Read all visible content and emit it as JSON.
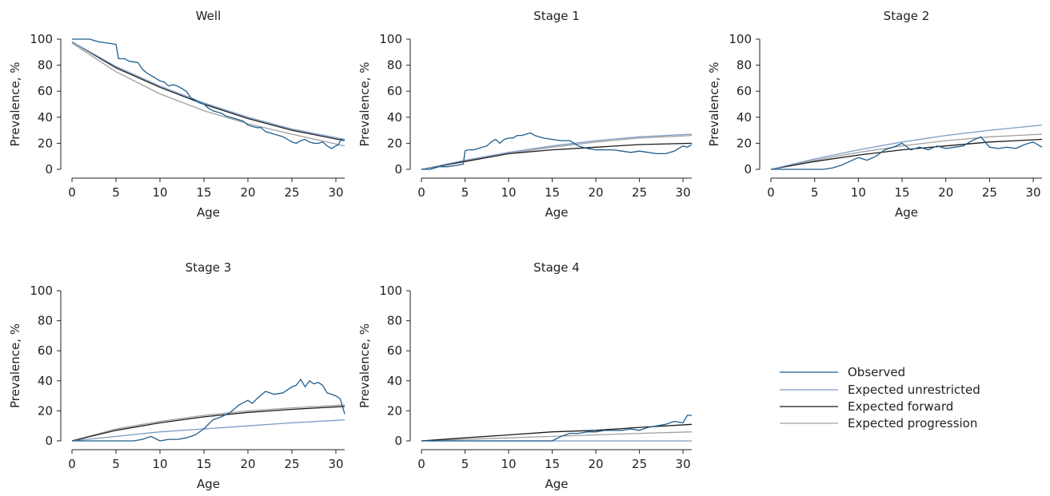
{
  "chart_data": [
    {
      "type": "line",
      "title": "Well",
      "xlabel": "Age",
      "ylabel": "Prevalence, %",
      "xlim": [
        0,
        31
      ],
      "ylim": [
        0,
        100
      ],
      "xticks": [
        0,
        5,
        10,
        15,
        20,
        25,
        30
      ],
      "yticks": [
        0,
        20,
        40,
        60,
        80,
        100
      ],
      "series": [
        {
          "name": "Observed",
          "color": "#1f5d8c",
          "x": [
            0,
            1,
            1.5,
            2,
            3,
            4,
            5,
            5.3,
            6,
            6.5,
            7.5,
            8,
            8.5,
            9,
            9.5,
            10,
            10.5,
            11,
            11.5,
            12,
            12.5,
            13,
            13.5,
            14,
            14.5,
            15,
            15.5,
            16,
            16.5,
            17,
            17.5,
            18,
            18.5,
            19,
            19.5,
            20,
            20.5,
            21,
            21.5,
            22,
            22.5,
            23,
            23.5,
            24,
            24.5,
            25,
            25.5,
            26,
            26.5,
            27,
            27.5,
            28,
            28.5,
            29,
            29.5,
            30,
            30.3,
            30.6,
            31
          ],
          "y": [
            100,
            100,
            100,
            100,
            98,
            97,
            96,
            85,
            85,
            83,
            82,
            77,
            74,
            72,
            70,
            68,
            67,
            64,
            65,
            64,
            62,
            60,
            55,
            53,
            51,
            50,
            47,
            45,
            44,
            43,
            41,
            40,
            39,
            38,
            37,
            34,
            33,
            32,
            32,
            29,
            28,
            27,
            26,
            25,
            23,
            21,
            20,
            22,
            23,
            21,
            20,
            20,
            21,
            18,
            16,
            18,
            19,
            23,
            22
          ]
        },
        {
          "name": "Expected unrestricted",
          "color": "#7a9cc4",
          "x": [
            0,
            5,
            10,
            15,
            20,
            25,
            31
          ],
          "y": [
            98,
            79,
            64,
            51,
            40,
            31,
            23
          ]
        },
        {
          "name": "Expected forward",
          "color": "#1a1a1a",
          "x": [
            0,
            5,
            10,
            15,
            20,
            25,
            31
          ],
          "y": [
            98,
            78,
            63,
            50,
            39,
            30,
            22
          ]
        },
        {
          "name": "Expected progression",
          "color": "#a0a0a0",
          "x": [
            0,
            5,
            10,
            15,
            20,
            25,
            31
          ],
          "y": [
            97,
            75,
            58,
            45,
            35,
            27,
            18
          ]
        }
      ]
    },
    {
      "type": "line",
      "title": "Stage 1",
      "xlabel": "Age",
      "ylabel": "Prevalence, %",
      "xlim": [
        0,
        31
      ],
      "ylim": [
        0,
        100
      ],
      "xticks": [
        0,
        5,
        10,
        15,
        20,
        25,
        30
      ],
      "yticks": [
        0,
        20,
        40,
        60,
        80,
        100
      ],
      "series": [
        {
          "name": "Observed",
          "color": "#1f5d8c",
          "x": [
            0,
            1,
            1.5,
            2,
            3,
            4,
            4.8,
            5,
            5.3,
            6,
            7,
            7.5,
            8,
            8.5,
            9,
            9.5,
            10,
            10.5,
            11,
            11.5,
            12,
            12.5,
            13,
            14,
            15,
            16,
            17,
            18,
            19,
            20,
            21,
            22,
            23,
            24,
            25,
            26,
            27,
            28,
            29,
            30,
            30.5,
            31
          ],
          "y": [
            0,
            0,
            1,
            2,
            2,
            3,
            4,
            14,
            15,
            15,
            17,
            18,
            21,
            23,
            20,
            23,
            24,
            24,
            26,
            26,
            27,
            28,
            26,
            24,
            23,
            22,
            22,
            18,
            16,
            15,
            15,
            15,
            14,
            13,
            14,
            13,
            12,
            12,
            14,
            18,
            17,
            19
          ]
        },
        {
          "name": "Expected unrestricted",
          "color": "#7a9cc4",
          "x": [
            0,
            5,
            10,
            15,
            20,
            25,
            31
          ],
          "y": [
            0,
            7,
            13,
            18,
            22,
            25,
            27
          ]
        },
        {
          "name": "Expected forward",
          "color": "#1a1a1a",
          "x": [
            0,
            5,
            10,
            15,
            20,
            25,
            31
          ],
          "y": [
            0,
            6,
            12,
            15,
            17,
            19,
            20
          ]
        },
        {
          "name": "Expected progression",
          "color": "#a0a0a0",
          "x": [
            0,
            5,
            10,
            15,
            20,
            25,
            31
          ],
          "y": [
            0,
            6,
            12,
            17,
            21,
            24,
            26
          ]
        }
      ]
    },
    {
      "type": "line",
      "title": "Stage 2",
      "xlabel": "Age",
      "ylabel": "Prevalence, %",
      "xlim": [
        0,
        31
      ],
      "ylim": [
        0,
        100
      ],
      "xticks": [
        0,
        5,
        10,
        15,
        20,
        25,
        30
      ],
      "yticks": [
        0,
        20,
        40,
        60,
        80,
        100
      ],
      "series": [
        {
          "name": "Observed",
          "color": "#1f5d8c",
          "x": [
            0,
            1,
            2,
            3,
            4,
            5,
            6,
            7,
            8,
            9,
            10,
            11,
            12,
            13,
            14,
            15,
            16,
            17,
            18,
            19,
            20,
            21,
            22,
            23,
            24,
            25,
            26,
            27,
            28,
            29,
            30,
            31
          ],
          "y": [
            0,
            0,
            0,
            0,
            0,
            0,
            0,
            1,
            3,
            6,
            9,
            7,
            10,
            15,
            17,
            20,
            15,
            17,
            15,
            18,
            16,
            17,
            18,
            22,
            25,
            17,
            16,
            17,
            16,
            19,
            21,
            17
          ]
        },
        {
          "name": "Expected unrestricted",
          "color": "#7a9cc4",
          "x": [
            0,
            5,
            10,
            15,
            20,
            25,
            31
          ],
          "y": [
            0,
            8,
            15,
            21,
            26,
            30,
            34
          ]
        },
        {
          "name": "Expected forward",
          "color": "#1a1a1a",
          "x": [
            0,
            5,
            10,
            15,
            20,
            25,
            31
          ],
          "y": [
            0,
            6,
            11,
            15,
            18,
            21,
            23
          ]
        },
        {
          "name": "Expected progression",
          "color": "#a0a0a0",
          "x": [
            0,
            5,
            10,
            15,
            20,
            25,
            31
          ],
          "y": [
            0,
            7,
            13,
            18,
            22,
            25,
            27
          ]
        }
      ]
    },
    {
      "type": "line",
      "title": "Stage 3",
      "xlabel": "Age",
      "ylabel": "Prevalence, %",
      "xlim": [
        0,
        31
      ],
      "ylim": [
        0,
        100
      ],
      "xticks": [
        0,
        5,
        10,
        15,
        20,
        25,
        30
      ],
      "yticks": [
        0,
        20,
        40,
        60,
        80,
        100
      ],
      "series": [
        {
          "name": "Observed",
          "color": "#1f5d8c",
          "x": [
            0,
            2,
            4,
            6,
            7,
            8,
            9,
            10,
            11,
            12,
            13,
            14,
            15,
            16,
            17,
            18,
            19,
            20,
            20.5,
            21,
            22,
            23,
            24,
            25,
            25.5,
            26,
            26.5,
            27,
            27.5,
            28,
            28.5,
            29,
            29.5,
            30,
            30.5,
            31
          ],
          "y": [
            0,
            0,
            0,
            0,
            0,
            1,
            3,
            0,
            1,
            1,
            2,
            4,
            8,
            14,
            16,
            19,
            24,
            27,
            25,
            28,
            33,
            31,
            32,
            36,
            37,
            41,
            36,
            40,
            38,
            39,
            37,
            32,
            31,
            30,
            28,
            18
          ]
        },
        {
          "name": "Expected unrestricted",
          "color": "#7a9cc4",
          "x": [
            0,
            5,
            10,
            15,
            20,
            25,
            31
          ],
          "y": [
            0,
            3,
            6,
            8,
            10,
            12,
            14
          ]
        },
        {
          "name": "Expected forward",
          "color": "#1a1a1a",
          "x": [
            0,
            5,
            10,
            15,
            20,
            25,
            31
          ],
          "y": [
            0,
            7,
            12,
            16,
            19,
            21,
            23
          ]
        },
        {
          "name": "Expected progression",
          "color": "#a0a0a0",
          "x": [
            0,
            5,
            10,
            15,
            20,
            25,
            31
          ],
          "y": [
            0,
            8,
            13,
            17,
            20,
            22,
            24
          ]
        }
      ]
    },
    {
      "type": "line",
      "title": "Stage 4",
      "xlabel": "Age",
      "ylabel": "Prevalence, %",
      "xlim": [
        0,
        31
      ],
      "ylim": [
        0,
        100
      ],
      "xticks": [
        0,
        5,
        10,
        15,
        20,
        25,
        30
      ],
      "yticks": [
        0,
        20,
        40,
        60,
        80,
        100
      ],
      "series": [
        {
          "name": "Observed",
          "color": "#1f5d8c",
          "x": [
            0,
            2,
            4,
            6,
            8,
            10,
            12,
            14,
            15,
            16,
            17,
            18,
            19,
            20,
            21,
            22,
            23,
            24,
            25,
            26,
            27,
            28,
            29,
            30,
            30.5,
            31
          ],
          "y": [
            0,
            0,
            0,
            0,
            0,
            0,
            0,
            0,
            0,
            3,
            5,
            5,
            6,
            6,
            7,
            7,
            7,
            8,
            7,
            9,
            10,
            11,
            13,
            12,
            17,
            17
          ]
        },
        {
          "name": "Expected unrestricted",
          "color": "#7a9cc4",
          "x": [
            0,
            5,
            10,
            15,
            20,
            25,
            31
          ],
          "y": [
            0,
            0,
            0,
            0,
            0,
            0,
            0
          ]
        },
        {
          "name": "Expected forward",
          "color": "#1a1a1a",
          "x": [
            0,
            5,
            10,
            15,
            20,
            25,
            31
          ],
          "y": [
            0,
            2,
            4,
            6,
            7,
            9,
            11
          ]
        },
        {
          "name": "Expected progression",
          "color": "#a0a0a0",
          "x": [
            0,
            5,
            10,
            15,
            20,
            25,
            31
          ],
          "y": [
            0,
            1,
            2,
            3,
            4,
            5,
            6
          ]
        }
      ]
    }
  ],
  "legend": {
    "placement": "bottom-right",
    "items": [
      {
        "label": "Observed",
        "color": "#1f5d8c"
      },
      {
        "label": "Expected unrestricted",
        "color": "#7a9cc4"
      },
      {
        "label": "Expected forward",
        "color": "#1a1a1a"
      },
      {
        "label": "Expected progression",
        "color": "#a0a0a0"
      }
    ]
  }
}
